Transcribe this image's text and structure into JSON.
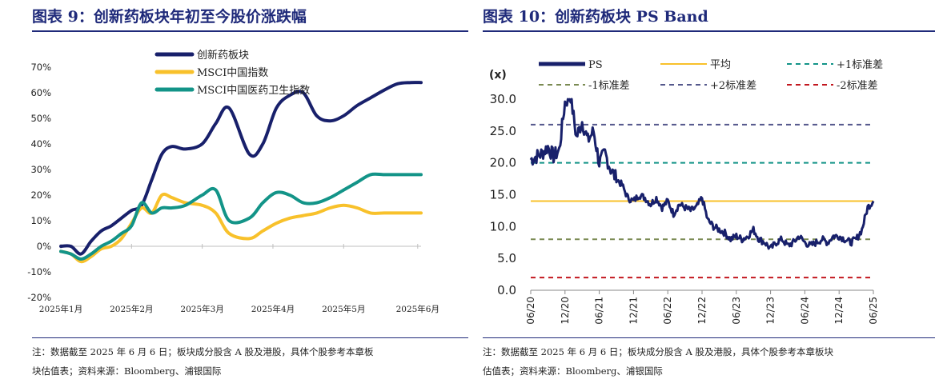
{
  "left": {
    "title": "图表 9：创新药板块年初至今股价涨跌幅",
    "note_line1": "注：数据截至 2025 年 6 月 6 日；板块成分股含 A 股及港股，具体个股参考本章板",
    "note_line2": "块估值表；资料来源：Bloomberg、浦银国际",
    "colors": {
      "series1": "#18206b",
      "series2": "#f8c12b",
      "series3": "#139488"
    },
    "chart_data": {
      "type": "line",
      "title": "",
      "xlabel": "",
      "ylabel": "",
      "ylim": [
        -20,
        70
      ],
      "y_ticks": [
        "70%",
        "60%",
        "50%",
        "40%",
        "30%",
        "20%",
        "10%",
        "0%",
        "-10%",
        "-20%"
      ],
      "y_tick_values": [
        70,
        60,
        50,
        40,
        30,
        20,
        10,
        0,
        -10,
        -20
      ],
      "x_ticks": [
        "2025年1月",
        "2025年2月",
        "2025年3月",
        "2025年4月",
        "2025年5月",
        "2025年6月"
      ],
      "legend": "top-left",
      "grid": false,
      "series": [
        {
          "name": "创新药板块",
          "color": "#18206b",
          "x": [
            0,
            0.15,
            0.3,
            0.45,
            0.6,
            0.75,
            0.9,
            1.05,
            1.2,
            1.35,
            1.5,
            1.65,
            1.85,
            2.1,
            2.3,
            2.5,
            2.8,
            3.0,
            3.2,
            3.4,
            3.6,
            3.8,
            4.0,
            4.2,
            4.4,
            4.6,
            4.8,
            5.0,
            5.2,
            5.35
          ],
          "values": [
            0,
            0,
            -3,
            2,
            6,
            8,
            11,
            14,
            16,
            26,
            36,
            39,
            38,
            40,
            48,
            54,
            36,
            40,
            54,
            59,
            60,
            51,
            49,
            51,
            55,
            58,
            61,
            63.5,
            64,
            64
          ]
        },
        {
          "name": "MSCI中国指数",
          "color": "#f8c12b",
          "x": [
            0,
            0.15,
            0.3,
            0.45,
            0.6,
            0.75,
            0.9,
            1.05,
            1.2,
            1.35,
            1.5,
            1.65,
            1.85,
            2.1,
            2.3,
            2.5,
            2.8,
            3.0,
            3.2,
            3.4,
            3.6,
            3.8,
            4.0,
            4.2,
            4.4,
            4.6,
            4.8,
            5.0,
            5.2,
            5.35
          ],
          "values": [
            -2,
            -3,
            -6,
            -4,
            -1,
            0,
            3,
            9,
            15,
            13,
            20,
            19,
            17,
            16,
            13,
            5,
            3,
            6,
            9,
            11,
            12,
            13,
            15,
            16,
            15,
            13,
            13,
            13,
            13,
            13
          ]
        },
        {
          "name": "MSCI中国医药卫生指数",
          "color": "#139488",
          "x": [
            0,
            0.15,
            0.3,
            0.45,
            0.6,
            0.75,
            0.9,
            1.05,
            1.2,
            1.35,
            1.5,
            1.65,
            1.85,
            2.1,
            2.3,
            2.5,
            2.8,
            3.0,
            3.2,
            3.4,
            3.6,
            3.8,
            4.0,
            4.2,
            4.4,
            4.6,
            4.8,
            5.0,
            5.2,
            5.35
          ],
          "values": [
            -2,
            -3,
            -5,
            -3,
            0,
            2,
            5,
            8,
            17,
            13,
            15,
            15,
            16,
            20,
            22,
            10,
            11,
            17,
            21,
            20,
            17,
            17,
            19,
            22,
            25,
            28,
            28,
            28,
            28,
            28
          ]
        }
      ]
    }
  },
  "right": {
    "title": "图表 10：创新药板块 PS Band",
    "note_line1": "注：数据截至 2025 年 6 月 6 日；板块成分股含 A 股及港股，具体个股参考本章板块",
    "note_line2": "估值表；资料来源：Bloomberg、浦银国际",
    "unit_label": "(x)",
    "colors": {
      "ps": "#18206b",
      "mean": "#f8c12b",
      "plus1": "#139488",
      "minus1": "#7a8a52",
      "plus2": "#55588c",
      "minus2": "#c2171f"
    },
    "chart_data": {
      "type": "line",
      "title": "",
      "xlabel": "",
      "ylabel": "(x)",
      "ylim": [
        0,
        30
      ],
      "y_ticks": [
        "30.0",
        "25.0",
        "20.0",
        "15.0",
        "10.0",
        "5.0",
        "0.0"
      ],
      "y_tick_values": [
        30,
        25,
        20,
        15,
        10,
        5,
        0
      ],
      "x_ticks": [
        "06/20",
        "12/20",
        "06/21",
        "12/21",
        "06/22",
        "12/22",
        "06/23",
        "12/23",
        "06/24",
        "12/24",
        "06/25"
      ],
      "legend": "top",
      "grid": false,
      "bands": [
        {
          "name": "平均",
          "value": 14.0,
          "color": "#f8c12b",
          "style": "solid"
        },
        {
          "name": "+1标准差",
          "value": 20.0,
          "color": "#139488",
          "style": "dashed"
        },
        {
          "name": "-1标准差",
          "value": 8.0,
          "color": "#7a8a52",
          "style": "dashed"
        },
        {
          "name": "+2标准差",
          "value": 26.0,
          "color": "#55588c",
          "style": "dashed"
        },
        {
          "name": "-2标准差",
          "value": 2.0,
          "color": "#c2171f",
          "style": "dashed"
        }
      ],
      "series": [
        {
          "name": "PS",
          "color": "#18206b",
          "x": [
            "06/20",
            "07/20",
            "08/20",
            "09/20",
            "10/20",
            "11/20",
            "12/20",
            "01/21",
            "02/21",
            "03/21",
            "04/21",
            "05/21",
            "06/21",
            "07/21",
            "08/21",
            "09/21",
            "10/21",
            "11/21",
            "12/21",
            "01/22",
            "02/22",
            "03/22",
            "04/22",
            "05/22",
            "06/22",
            "07/22",
            "08/22",
            "09/22",
            "10/22",
            "11/22",
            "12/22",
            "01/23",
            "02/23",
            "03/23",
            "04/23",
            "05/23",
            "06/23",
            "07/23",
            "08/23",
            "09/23",
            "10/23",
            "11/23",
            "12/23",
            "01/24",
            "02/24",
            "03/24",
            "04/24",
            "05/24",
            "06/24",
            "07/24",
            "08/24",
            "09/24",
            "10/24",
            "11/24",
            "12/24",
            "01/25",
            "02/25",
            "03/25",
            "04/25",
            "05/25",
            "06/25"
          ],
          "values": [
            20.5,
            21.0,
            21.5,
            22.5,
            21.0,
            22.0,
            29.5,
            30.5,
            24.0,
            26.5,
            23.5,
            25.0,
            20.0,
            21.5,
            19.0,
            17.5,
            16.5,
            14.5,
            14.0,
            15.0,
            14.5,
            13.5,
            14.5,
            13.0,
            14.0,
            12.0,
            13.5,
            13.0,
            12.5,
            13.0,
            14.5,
            11.0,
            10.0,
            9.5,
            9.0,
            8.0,
            8.5,
            8.0,
            8.5,
            9.5,
            8.0,
            7.5,
            6.5,
            7.5,
            8.0,
            7.0,
            7.5,
            8.5,
            7.5,
            7.0,
            7.5,
            8.0,
            7.5,
            8.5,
            8.5,
            8.0,
            7.5,
            8.0,
            9.5,
            13.0,
            14.0
          ]
        }
      ]
    }
  }
}
